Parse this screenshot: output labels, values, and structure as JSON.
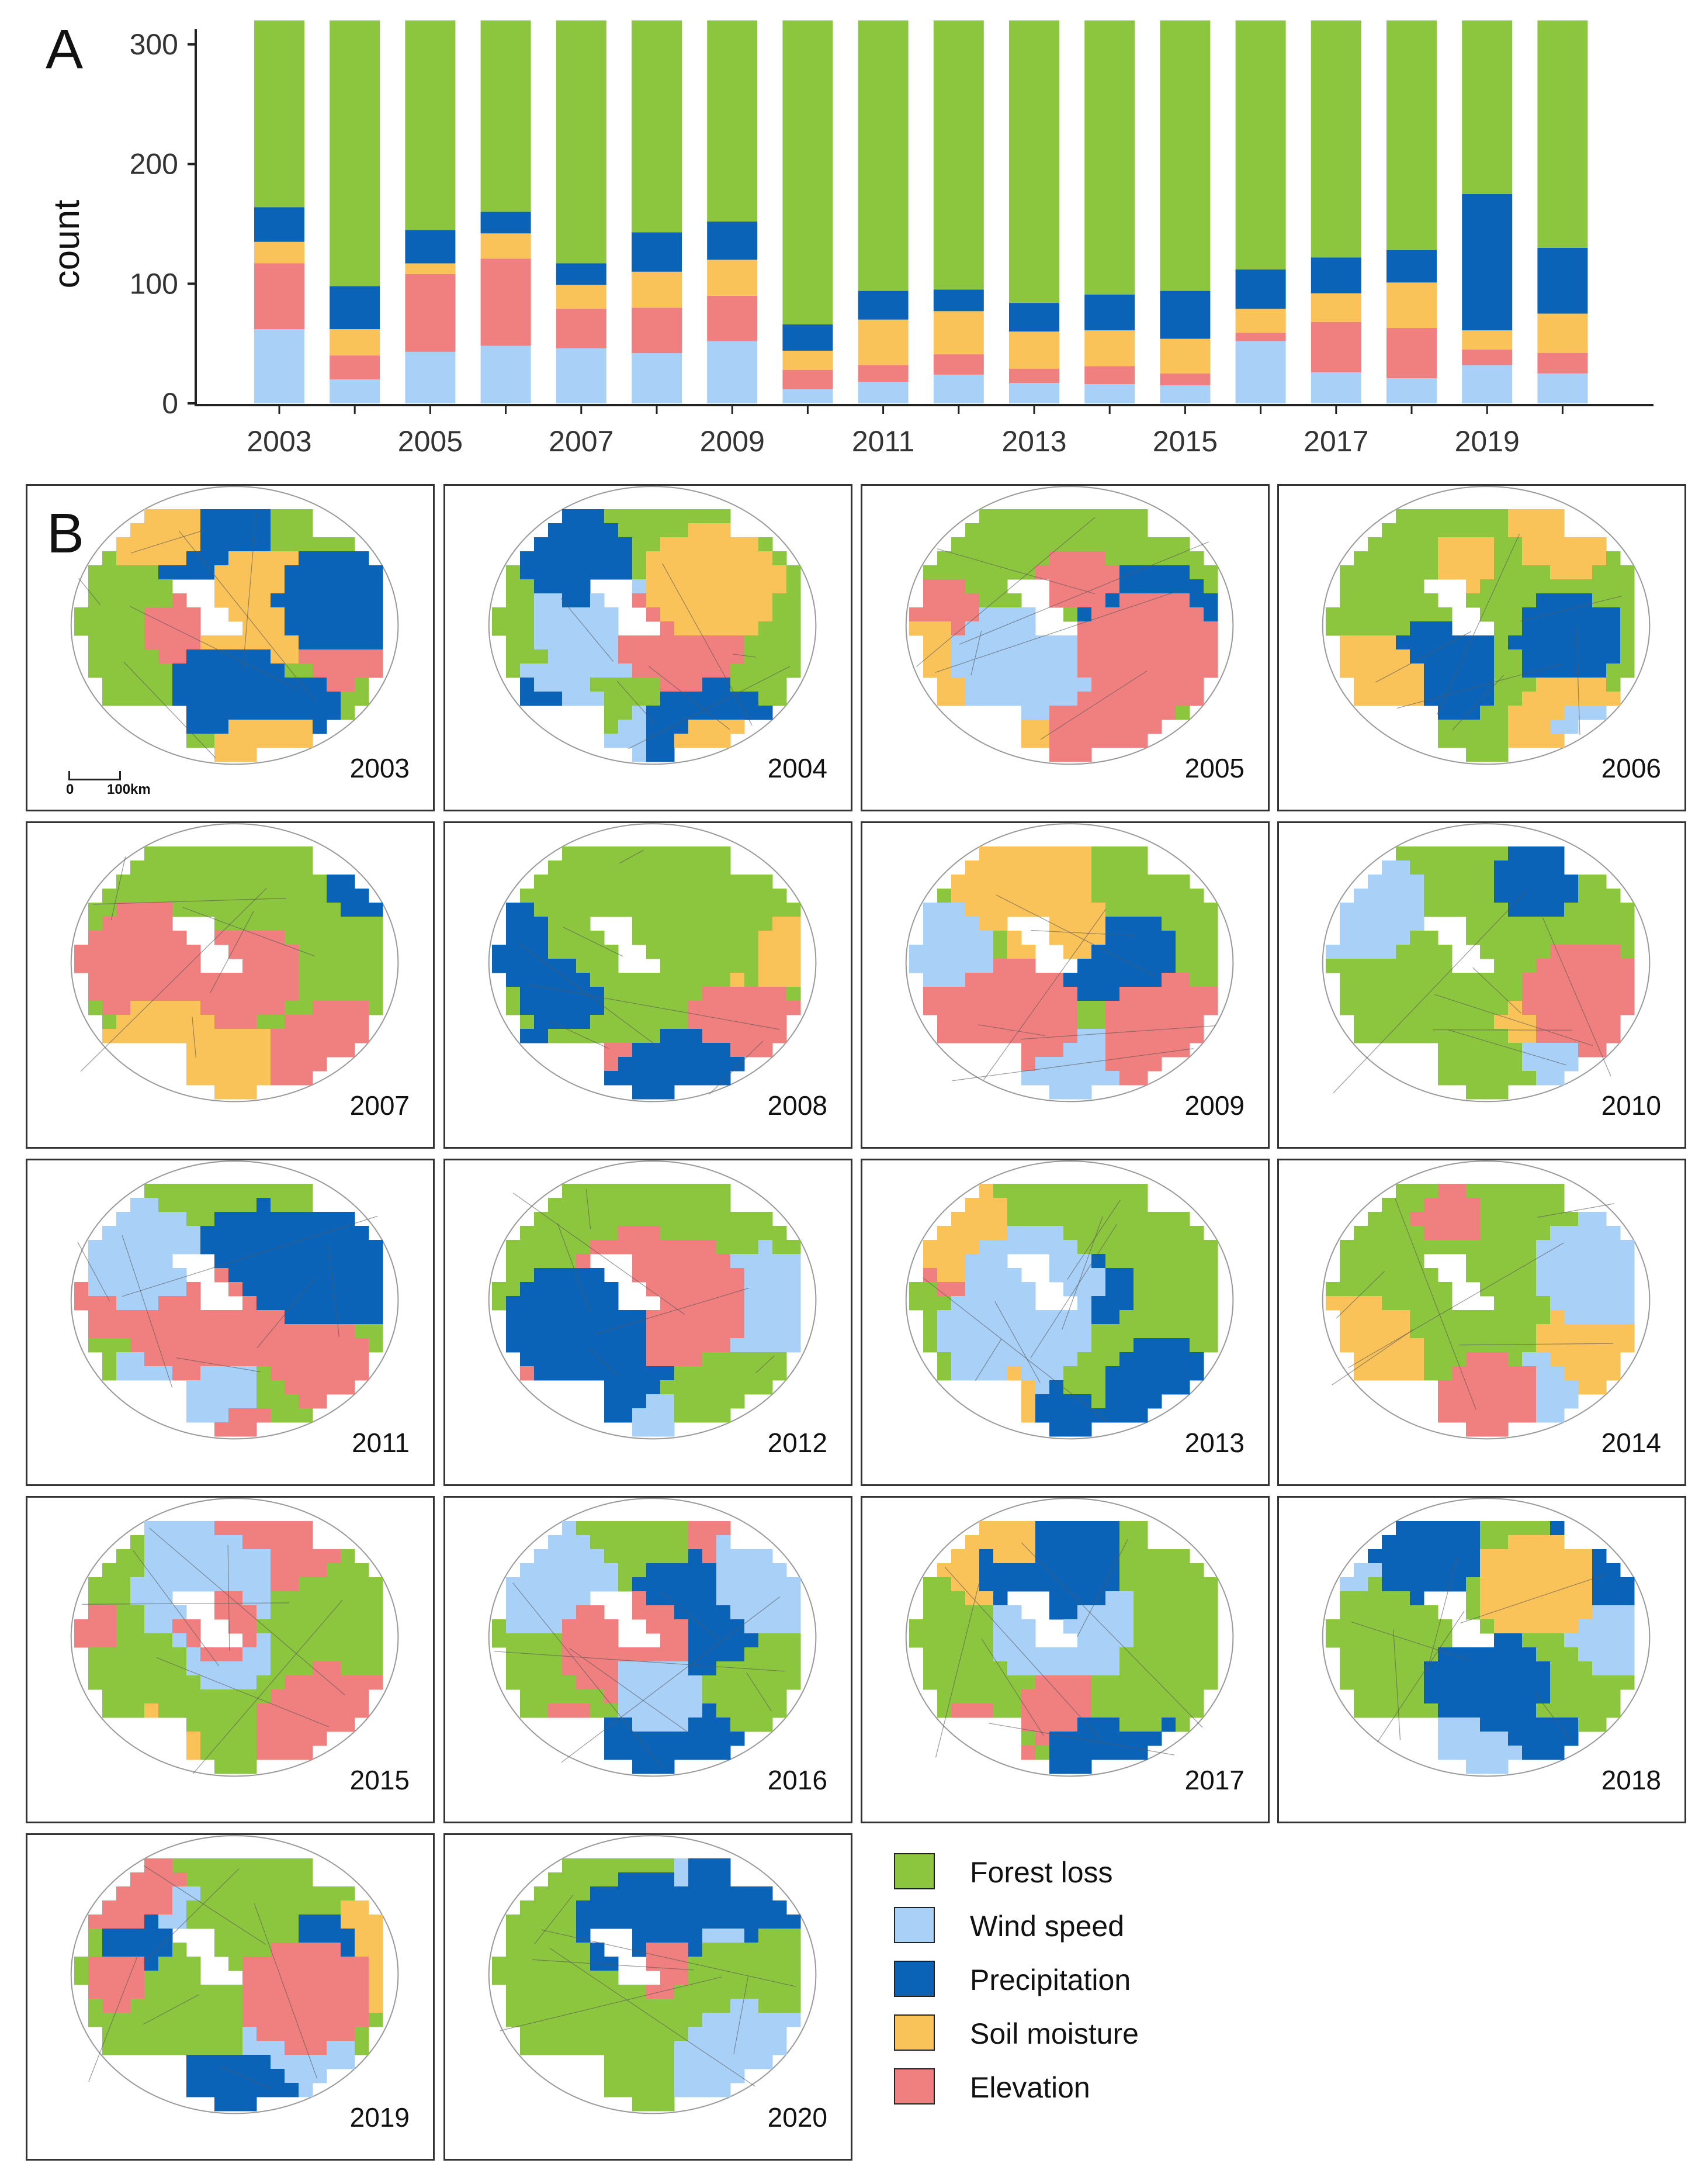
{
  "panel_a_letter": "A",
  "panel_b_letter": "B",
  "colors": {
    "forest_loss": "#8cc63f",
    "wind_speed": "#a9d1f7",
    "precipitation": "#0b63b7",
    "soil_moisture": "#f9c35a",
    "elevation": "#f07f80"
  },
  "chart_data": {
    "type": "bar",
    "stacked": true,
    "title": "",
    "xlabel": "",
    "ylabel": "count",
    "ylim": [
      0,
      320
    ],
    "yticks": [
      0,
      100,
      200,
      300
    ],
    "categories": [
      "2003",
      "2004",
      "2005",
      "2006",
      "2007",
      "2008",
      "2009",
      "2010",
      "2011",
      "2012",
      "2013",
      "2014",
      "2015",
      "2016",
      "2017",
      "2018",
      "2019",
      "2020"
    ],
    "x_tick_labels": [
      "2003",
      "2005",
      "2007",
      "2009",
      "2011",
      "2013",
      "2015",
      "2017",
      "2019"
    ],
    "series": [
      {
        "name": "Wind speed",
        "color": "#a9d1f7",
        "values": [
          62,
          20,
          43,
          48,
          46,
          42,
          52,
          12,
          18,
          24,
          17,
          16,
          15,
          52,
          26,
          21,
          32,
          25
        ]
      },
      {
        "name": "Elevation",
        "color": "#f07f80",
        "values": [
          55,
          20,
          65,
          73,
          33,
          38,
          38,
          16,
          14,
          17,
          12,
          15,
          10,
          7,
          42,
          42,
          13,
          17
        ]
      },
      {
        "name": "Soil moisture",
        "color": "#f9c35a",
        "values": [
          18,
          22,
          9,
          21,
          20,
          30,
          30,
          16,
          38,
          36,
          31,
          30,
          29,
          20,
          24,
          38,
          16,
          33
        ]
      },
      {
        "name": "Precipitation",
        "color": "#0b63b7",
        "values": [
          29,
          36,
          28,
          18,
          18,
          33,
          32,
          22,
          24,
          18,
          24,
          30,
          40,
          33,
          30,
          27,
          114,
          55
        ]
      },
      {
        "name": "Forest loss",
        "color": "#8cc63f",
        "values": [
          156,
          222,
          175,
          160,
          203,
          177,
          168,
          254,
          226,
          225,
          236,
          229,
          226,
          208,
          198,
          192,
          145,
          190
        ]
      }
    ]
  },
  "maps": {
    "years": [
      "2003",
      "2004",
      "2005",
      "2006",
      "2007",
      "2008",
      "2009",
      "2010",
      "2011",
      "2012",
      "2013",
      "2014",
      "2015",
      "2016",
      "2017",
      "2018",
      "2019",
      "2020"
    ],
    "scale_zero": "0",
    "scale_label": "100km"
  },
  "legend": {
    "items": [
      {
        "label": "Forest loss",
        "color": "#8cc63f"
      },
      {
        "label": "Wind speed",
        "color": "#a9d1f7"
      },
      {
        "label": "Precipitation",
        "color": "#0b63b7"
      },
      {
        "label": "Soil moisture",
        "color": "#f9c35a"
      },
      {
        "label": "Elevation",
        "color": "#f07f80"
      }
    ]
  }
}
